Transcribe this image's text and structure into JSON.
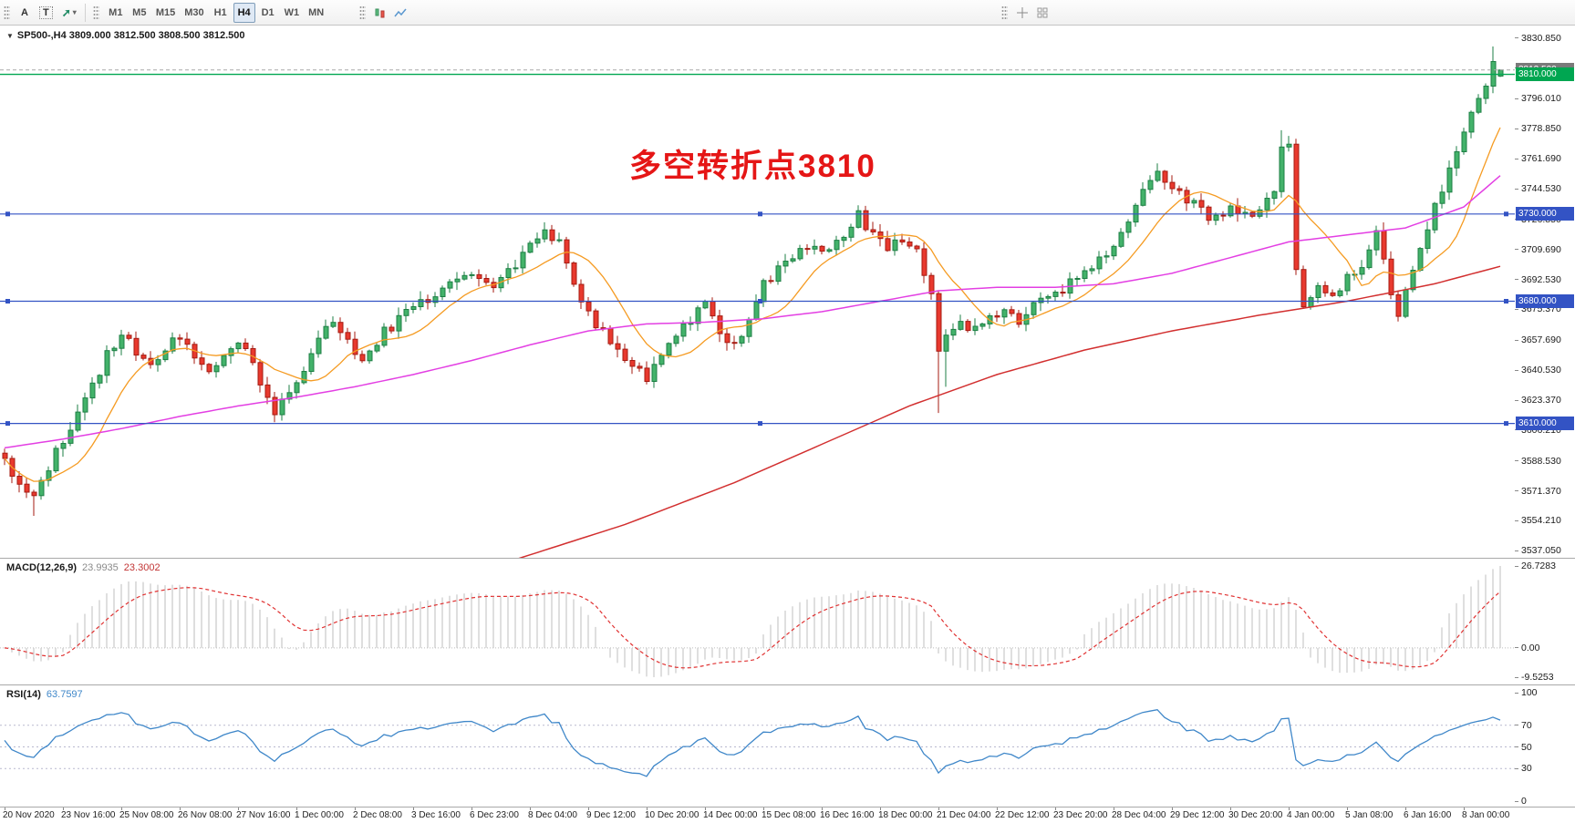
{
  "icons": {
    "collapse": "▼",
    "caret": "▾",
    "arrow_tool": "➚"
  },
  "toolbar": {
    "text_tool": "A",
    "label_tool": "T",
    "timeframes": [
      "M1",
      "M5",
      "M15",
      "M30",
      "H1",
      "H4",
      "D1",
      "W1",
      "MN"
    ],
    "active_timeframe": "H4"
  },
  "main_chart": {
    "title": "SP500-,H4  3809.000 3812.500 3808.500 3812.500",
    "annotation": {
      "text": "多空转折点3810",
      "color": "#e51616"
    },
    "price_axis": [
      "3830.850",
      "3813.690",
      "3796.010",
      "3778.850",
      "3761.690",
      "3744.530",
      "3726.850",
      "3709.690",
      "3692.530",
      "3675.370",
      "3657.690",
      "3640.530",
      "3623.370",
      "3606.210",
      "3588.530",
      "3571.370",
      "3554.210",
      "3537.050"
    ],
    "tags": [
      {
        "text": "3812.500",
        "price": 3812.5,
        "bg": "#7a7a7a",
        "fg": "#ffffff"
      },
      {
        "text": "3810.000",
        "price": 3810.0,
        "bg": "#00a651",
        "fg": "#ffffff"
      },
      {
        "text": "3730.000",
        "price": 3730.0,
        "bg": "#3353c4",
        "fg": "#ffffff"
      },
      {
        "text": "3680.000",
        "price": 3680.0,
        "bg": "#3353c4",
        "fg": "#ffffff"
      },
      {
        "text": "3610.000",
        "price": 3610.0,
        "bg": "#3353c4",
        "fg": "#ffffff"
      }
    ],
    "hlines": [
      {
        "price": 3812.5,
        "color": "#a9a9a9",
        "dash": "4,3",
        "width": 1,
        "handles": false,
        "name": "bid-price-line"
      },
      {
        "price": 3810.0,
        "color": "#00a651",
        "dash": "",
        "width": 1.4,
        "handles": false,
        "name": "level-line-3810"
      },
      {
        "price": 3730.0,
        "color": "#3353c4",
        "dash": "",
        "width": 1.2,
        "handles": true,
        "name": "level-line-3730"
      },
      {
        "price": 3680.0,
        "color": "#3353c4",
        "dash": "",
        "width": 1.2,
        "handles": true,
        "name": "level-line-3680"
      },
      {
        "price": 3610.0,
        "color": "#3353c4",
        "dash": "",
        "width": 1.2,
        "handles": true,
        "name": "level-line-3610"
      }
    ]
  },
  "macd": {
    "label": "MACD(12,26,9)",
    "value_main": "23.9935",
    "value_signal": "23.3002",
    "axis": [
      {
        "v": 26.7283,
        "t": "26.7283"
      },
      {
        "v": 0,
        "t": "0.00"
      },
      {
        "v": -9.5253,
        "t": "-9.5253"
      }
    ]
  },
  "rsi": {
    "label": "RSI(14)",
    "value": "63.7597",
    "axis": [
      {
        "v": 100,
        "t": "100"
      },
      {
        "v": 70,
        "t": "70"
      },
      {
        "v": 50,
        "t": "50"
      },
      {
        "v": 30,
        "t": "30"
      },
      {
        "v": 0,
        "t": "0"
      }
    ],
    "levels": [
      70,
      50,
      30
    ]
  },
  "date_axis": {
    "labels": [
      "20 Nov 2020",
      "23 Nov 16:00",
      "25 Nov 08:00",
      "26 Nov 08:00",
      "27 Nov 16:00",
      "1 Dec 00:00",
      "2 Dec 08:00",
      "3 Dec 16:00",
      "6 Dec 23:00",
      "8 Dec 04:00",
      "9 Dec 12:00",
      "10 Dec 20:00",
      "14 Dec 00:00",
      "15 Dec 08:00",
      "16 Dec 16:00",
      "18 Dec 00:00",
      "21 Dec 04:00",
      "22 Dec 12:00",
      "23 Dec 20:00",
      "28 Dec 04:00",
      "29 Dec 12:00",
      "30 Dec 20:00",
      "4 Jan 00:00",
      "5 Jan 08:00",
      "6 Jan 16:00",
      "8 Jan 00:00"
    ]
  },
  "chart_data": {
    "type": "candlestick",
    "symbol": "SP500-",
    "timeframe": "H4",
    "last_ohlc": {
      "open": 3809.0,
      "high": 3812.5,
      "low": 3808.5,
      "close": 3812.5
    },
    "bars": 206,
    "price_top": 3838,
    "price_bottom": 3533,
    "close_path_anchors": [
      [
        0,
        3590
      ],
      [
        2,
        3572
      ],
      [
        4,
        3566
      ],
      [
        6,
        3585
      ],
      [
        8,
        3600
      ],
      [
        10,
        3614
      ],
      [
        12,
        3630
      ],
      [
        14,
        3650
      ],
      [
        16,
        3662
      ],
      [
        18,
        3650
      ],
      [
        20,
        3643
      ],
      [
        22,
        3652
      ],
      [
        24,
        3660
      ],
      [
        26,
        3648
      ],
      [
        28,
        3640
      ],
      [
        30,
        3652
      ],
      [
        32,
        3656
      ],
      [
        34,
        3645
      ],
      [
        35,
        3632
      ],
      [
        37,
        3618
      ],
      [
        39,
        3628
      ],
      [
        41,
        3642
      ],
      [
        43,
        3660
      ],
      [
        45,
        3670
      ],
      [
        47,
        3655
      ],
      [
        49,
        3648
      ],
      [
        52,
        3662
      ],
      [
        55,
        3674
      ],
      [
        58,
        3682
      ],
      [
        61,
        3690
      ],
      [
        64,
        3696
      ],
      [
        67,
        3690
      ],
      [
        70,
        3700
      ],
      [
        72,
        3716
      ],
      [
        74,
        3721
      ],
      [
        76,
        3712
      ],
      [
        78,
        3690
      ],
      [
        80,
        3673
      ],
      [
        82,
        3663
      ],
      [
        84,
        3652
      ],
      [
        86,
        3644
      ],
      [
        88,
        3637
      ],
      [
        90,
        3650
      ],
      [
        93,
        3664
      ],
      [
        96,
        3678
      ],
      [
        98,
        3661
      ],
      [
        100,
        3656
      ],
      [
        102,
        3670
      ],
      [
        104,
        3690
      ],
      [
        106,
        3699
      ],
      [
        108,
        3705
      ],
      [
        110,
        3711
      ],
      [
        112,
        3706
      ],
      [
        114,
        3715
      ],
      [
        116,
        3723
      ],
      [
        117,
        3729
      ],
      [
        119,
        3717
      ],
      [
        121,
        3709
      ],
      [
        123,
        3715
      ],
      [
        125,
        3707
      ],
      [
        127,
        3684
      ],
      [
        128,
        3650
      ],
      [
        129,
        3659
      ],
      [
        131,
        3669
      ],
      [
        133,
        3663
      ],
      [
        135,
        3671
      ],
      [
        137,
        3673
      ],
      [
        139,
        3669
      ],
      [
        141,
        3676
      ],
      [
        143,
        3681
      ],
      [
        145,
        3687
      ],
      [
        147,
        3693
      ],
      [
        149,
        3701
      ],
      [
        151,
        3709
      ],
      [
        153,
        3719
      ],
      [
        155,
        3736
      ],
      [
        157,
        3749
      ],
      [
        158,
        3754
      ],
      [
        160,
        3746
      ],
      [
        162,
        3739
      ],
      [
        164,
        3731
      ],
      [
        166,
        3727
      ],
      [
        168,
        3733
      ],
      [
        170,
        3729
      ],
      [
        172,
        3734
      ],
      [
        174,
        3741
      ],
      [
        175,
        3771
      ],
      [
        176,
        3768
      ],
      [
        177,
        3700
      ],
      [
        178,
        3680
      ],
      [
        180,
        3690
      ],
      [
        182,
        3682
      ],
      [
        184,
        3694
      ],
      [
        186,
        3700
      ],
      [
        188,
        3719
      ],
      [
        189,
        3701
      ],
      [
        190,
        3682
      ],
      [
        191,
        3674
      ],
      [
        193,
        3697
      ],
      [
        195,
        3722
      ],
      [
        197,
        3744
      ],
      [
        199,
        3767
      ],
      [
        201,
        3790
      ],
      [
        203,
        3806
      ],
      [
        204,
        3816
      ],
      [
        205,
        3812.5
      ]
    ],
    "wick_overrides": [
      {
        "bar": 4,
        "low": 3557
      },
      {
        "bar": 117,
        "high": 3735
      },
      {
        "bar": 128,
        "low": 3616
      },
      {
        "bar": 129,
        "low": 3631
      },
      {
        "bar": 158,
        "high": 3759
      },
      {
        "bar": 175,
        "high": 3778
      },
      {
        "bar": 204,
        "high": 3826
      }
    ],
    "last_bar": {
      "open": 3809.0,
      "high": 3812.5,
      "low": 3808.5,
      "close": 3812.5
    },
    "ma_fast_period": 10,
    "ma_mid_anchors": [
      [
        0,
        3596
      ],
      [
        8,
        3601
      ],
      [
        16,
        3607
      ],
      [
        24,
        3614
      ],
      [
        32,
        3620
      ],
      [
        40,
        3625
      ],
      [
        48,
        3631
      ],
      [
        56,
        3638
      ],
      [
        64,
        3646
      ],
      [
        72,
        3655
      ],
      [
        80,
        3663
      ],
      [
        88,
        3667
      ],
      [
        96,
        3668
      ],
      [
        104,
        3670
      ],
      [
        112,
        3674
      ],
      [
        120,
        3680
      ],
      [
        128,
        3686
      ],
      [
        136,
        3688
      ],
      [
        144,
        3688
      ],
      [
        152,
        3690
      ],
      [
        160,
        3696
      ],
      [
        168,
        3705
      ],
      [
        176,
        3714
      ],
      [
        184,
        3718
      ],
      [
        192,
        3722
      ],
      [
        200,
        3734
      ],
      [
        205,
        3752
      ]
    ],
    "ma_slow_start": 70,
    "ma_slow_anchors": [
      [
        70,
        3532
      ],
      [
        85,
        3552
      ],
      [
        100,
        3576
      ],
      [
        112,
        3598
      ],
      [
        124,
        3620
      ],
      [
        136,
        3638
      ],
      [
        148,
        3652
      ],
      [
        160,
        3663
      ],
      [
        172,
        3672
      ],
      [
        184,
        3680
      ],
      [
        196,
        3690
      ],
      [
        205,
        3700
      ]
    ],
    "macd_max": 26.7283,
    "macd_min_abs": 9.5253,
    "rsi_last": 63.7597,
    "colors": {
      "up": "#43b26a",
      "up_border": "#1d7f44",
      "down": "#e8392e",
      "down_border": "#a61b12",
      "ma_fast": "#f59b22",
      "ma_mid": "#e33fe3",
      "ma_slow": "#d22f2f",
      "macd_hist": "#c9c9c9",
      "macd_signal": "#e03232",
      "rsi": "#3f87c9",
      "rsi_level": "#b9b9cf"
    }
  }
}
